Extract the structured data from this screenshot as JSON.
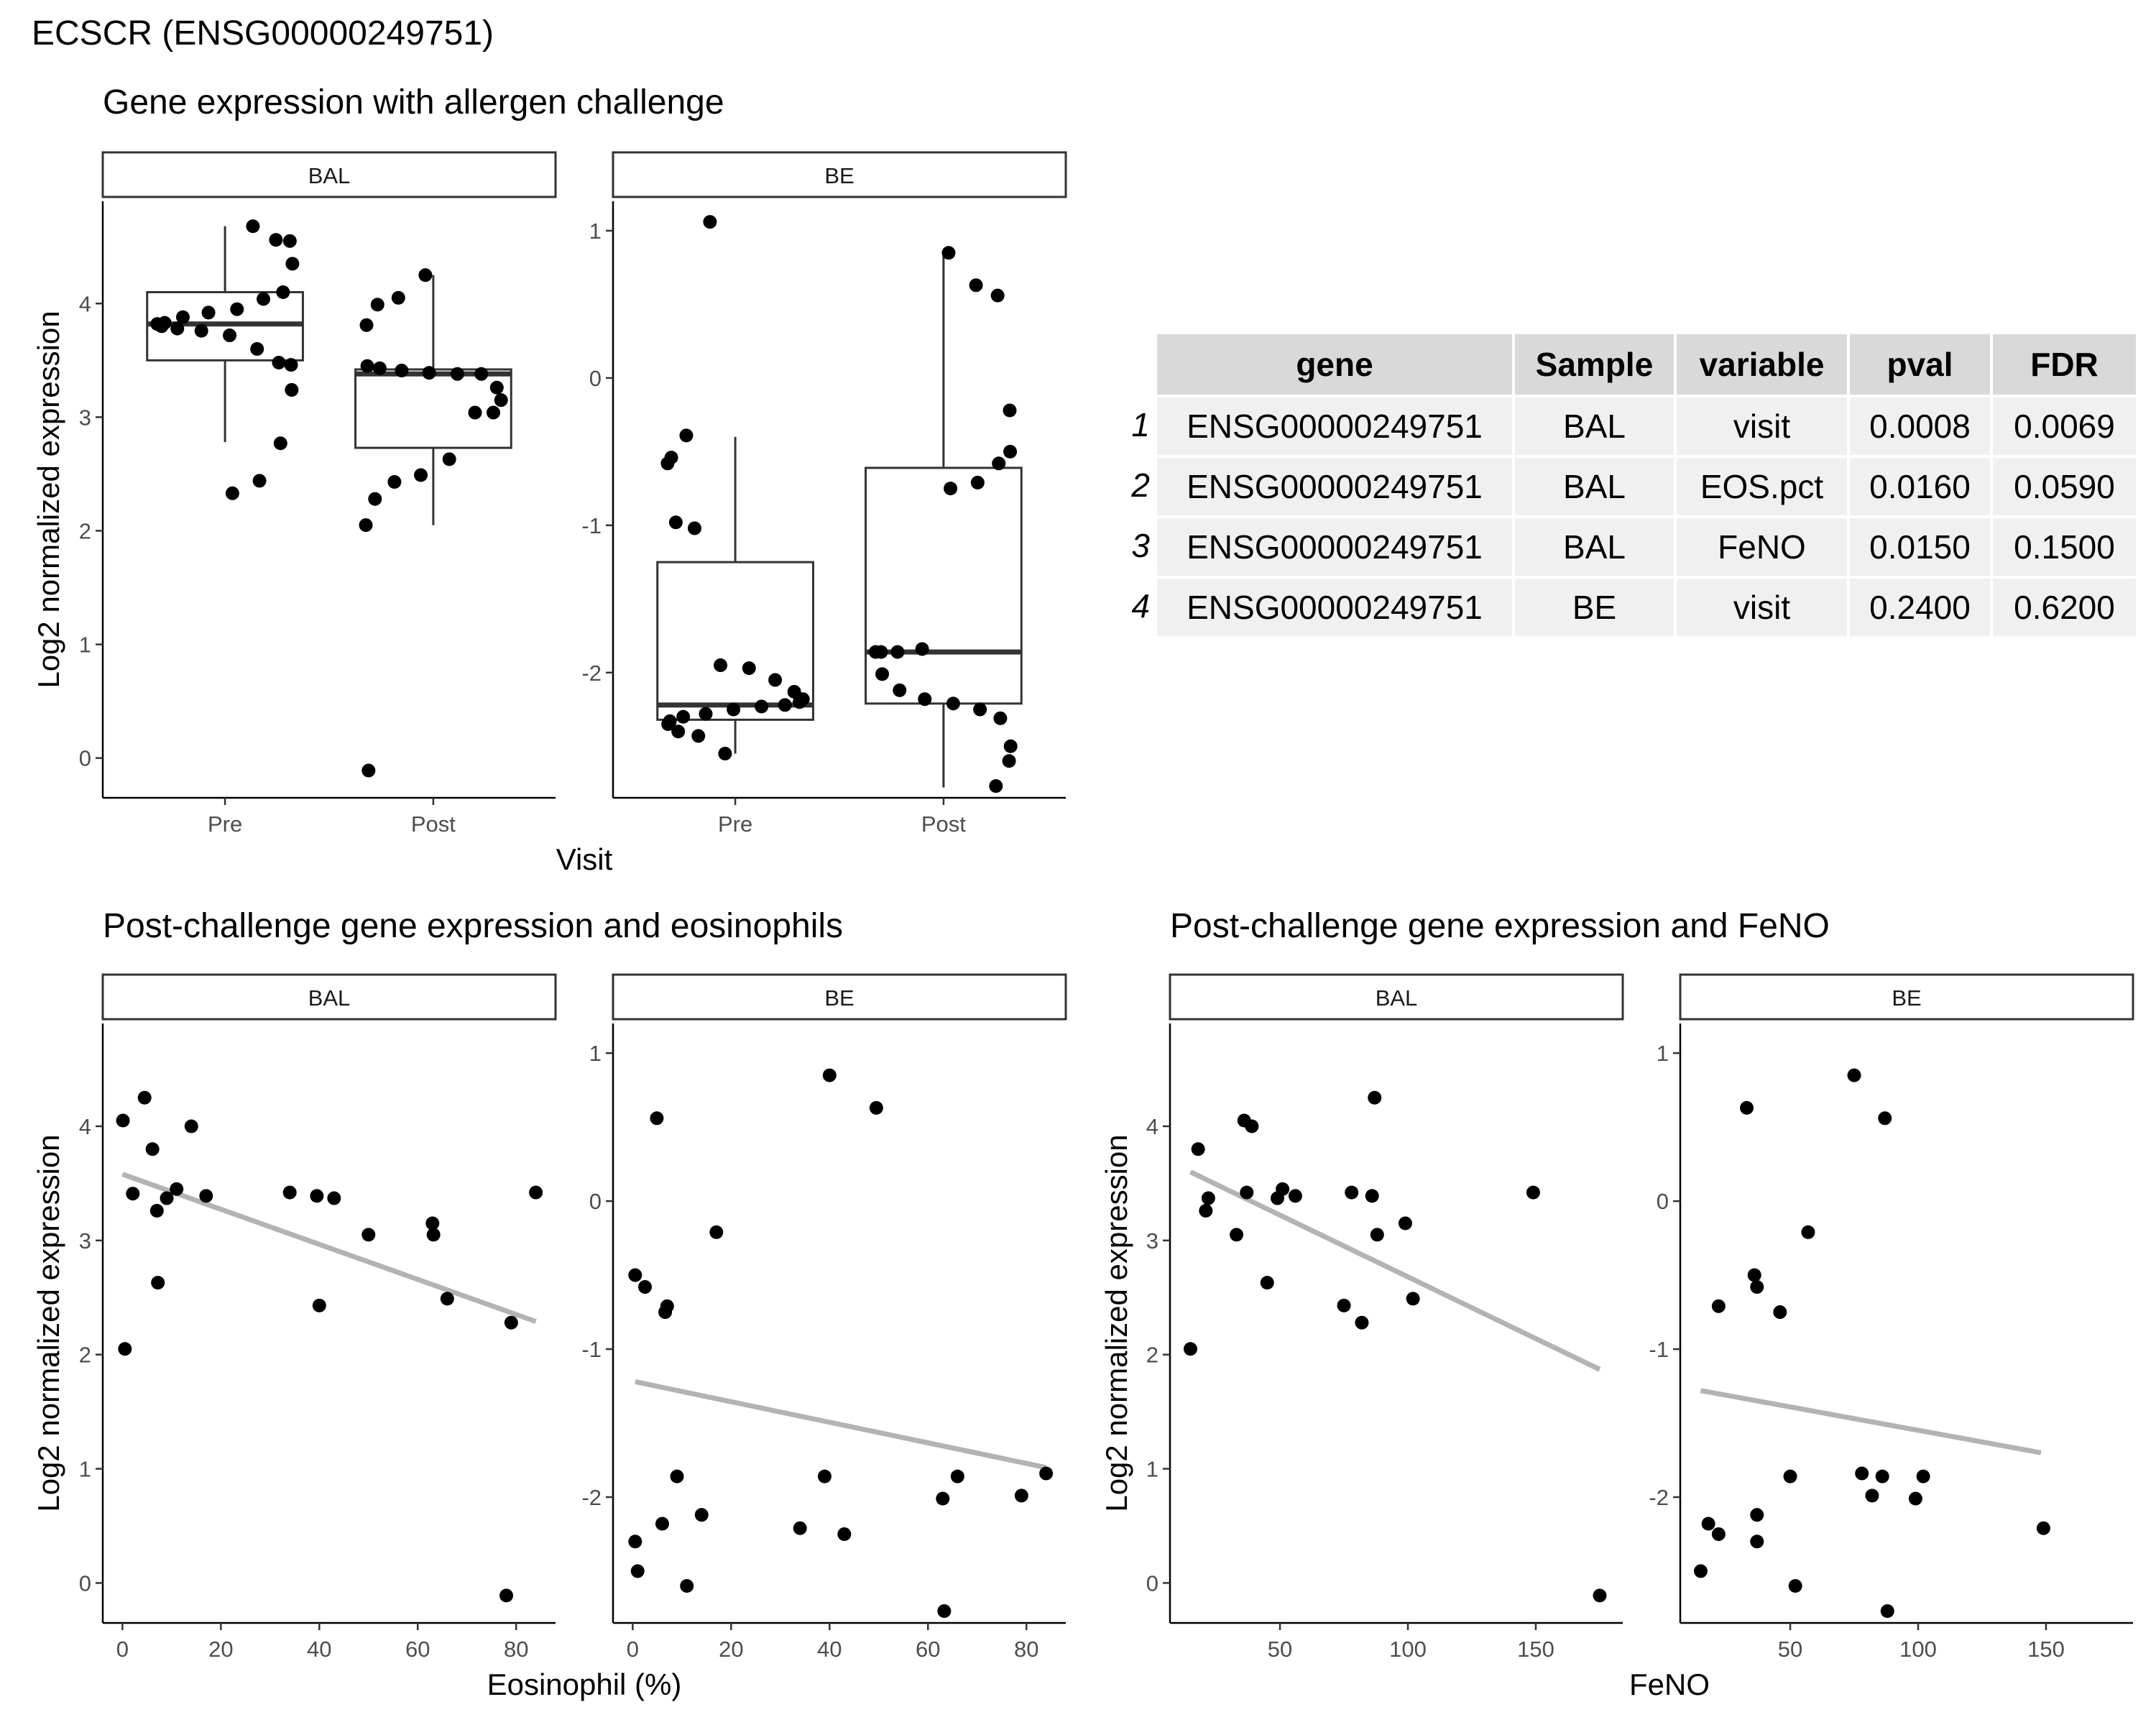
{
  "figure_title": "ECSCR (ENSG00000249751)",
  "chart_data": [
    {
      "id": "boxplot",
      "type": "box",
      "title": "Gene expression with allergen challenge",
      "xlabel": "Visit",
      "ylabel": "Log2 normalized expression",
      "categories": [
        "Pre",
        "Post"
      ],
      "panels": [
        {
          "name": "BAL",
          "ylim": [
            -0.35,
            4.9
          ],
          "yticks": [
            0,
            1,
            2,
            3,
            4
          ],
          "boxes": [
            {
              "category": "Pre",
              "whisker_low": 2.78,
              "q1": 3.5,
              "median": 3.82,
              "q3": 4.1,
              "whisker_high": 4.68
            },
            {
              "category": "Post",
              "whisker_low": 2.05,
              "q1": 2.73,
              "median": 3.38,
              "q3": 3.42,
              "whisker_high": 4.25
            }
          ],
          "points": [
            {
              "category": "Pre",
              "values": [
                4.68,
                4.56,
                4.55,
                4.35,
                4.1,
                4.04,
                3.95,
                3.92,
                3.88,
                3.83,
                3.82,
                3.8,
                3.78,
                3.76,
                3.72,
                3.6,
                3.48,
                3.46,
                3.24,
                2.77,
                2.44,
                2.33
              ]
            },
            {
              "category": "Post",
              "values": [
                4.25,
                4.05,
                3.99,
                3.81,
                3.45,
                3.43,
                3.41,
                3.39,
                3.38,
                3.38,
                3.26,
                3.15,
                3.04,
                3.04,
                2.63,
                2.49,
                2.43,
                2.28,
                2.05,
                -0.11
              ]
            }
          ]
        },
        {
          "name": "BE",
          "ylim": [
            -2.85,
            1.2
          ],
          "yticks": [
            -2,
            -1,
            0,
            1
          ],
          "boxes": [
            {
              "category": "Pre",
              "whisker_low": -2.55,
              "q1": -2.32,
              "median": -2.22,
              "q3": -1.25,
              "whisker_high": -0.4
            },
            {
              "category": "Post",
              "whisker_low": -2.78,
              "q1": -2.21,
              "median": -1.86,
              "q3": -0.61,
              "whisker_high": 0.85
            }
          ],
          "points": [
            {
              "category": "Pre",
              "values": [
                1.06,
                -0.39,
                -0.54,
                -0.58,
                -0.98,
                -1.02,
                -1.95,
                -1.97,
                -2.05,
                -2.13,
                -2.18,
                -2.2,
                -2.22,
                -2.23,
                -2.25,
                -2.28,
                -2.3,
                -2.33,
                -2.35,
                -2.4,
                -2.43,
                -2.55
              ]
            },
            {
              "category": "Post",
              "values": [
                0.85,
                0.63,
                0.56,
                -0.22,
                -0.5,
                -0.58,
                -0.71,
                -0.75,
                -1.84,
                -1.86,
                -1.86,
                -1.86,
                -2.01,
                -2.12,
                -2.18,
                -2.21,
                -2.25,
                -2.31,
                -2.5,
                -2.6,
                -2.77
              ]
            }
          ]
        }
      ]
    },
    {
      "id": "eos",
      "type": "scatter",
      "title": "Post-challenge gene expression and eosinophils",
      "xlabel": "Eosinophil (%)",
      "ylabel": "Log2 normalized expression",
      "xlim": [
        -4,
        88
      ],
      "xticks": [
        0,
        20,
        40,
        60,
        80
      ],
      "panels": [
        {
          "name": "BAL",
          "ylim": [
            -0.35,
            4.9
          ],
          "yticks": [
            0,
            1,
            2,
            3,
            4
          ],
          "fit": [
            [
              0,
              3.58
            ],
            [
              84,
              2.29
            ]
          ],
          "points": [
            [
              0.1,
              4.05
            ],
            [
              0.5,
              2.05
            ],
            [
              2.1,
              3.41
            ],
            [
              4.5,
              4.25
            ],
            [
              6.1,
              3.8
            ],
            [
              7,
              3.26
            ],
            [
              7.2,
              2.63
            ],
            [
              9,
              3.37
            ],
            [
              11,
              3.45
            ],
            [
              14,
              4
            ],
            [
              17,
              3.39
            ],
            [
              34,
              3.42
            ],
            [
              39.5,
              3.39
            ],
            [
              40,
              2.43
            ],
            [
              43,
              3.37
            ],
            [
              50,
              3.05
            ],
            [
              63,
              3.15
            ],
            [
              63.2,
              3.05
            ],
            [
              66,
              2.49
            ],
            [
              78,
              -0.11
            ],
            [
              79,
              2.28
            ],
            [
              84,
              3.42
            ]
          ]
        },
        {
          "name": "BE",
          "ylim": [
            -2.85,
            1.2
          ],
          "yticks": [
            -2,
            -1,
            0,
            1
          ],
          "fit": [
            [
              0.5,
              -1.22
            ],
            [
              84,
              -1.8
            ]
          ],
          "points": [
            [
              0.5,
              -0.5
            ],
            [
              0.5,
              -2.3
            ],
            [
              1,
              -2.5
            ],
            [
              2.5,
              -0.58
            ],
            [
              4.9,
              0.56
            ],
            [
              6,
              -2.18
            ],
            [
              6.6,
              -0.75
            ],
            [
              7,
              -0.71
            ],
            [
              9,
              -1.86
            ],
            [
              11,
              -2.6
            ],
            [
              14,
              -2.12
            ],
            [
              17,
              -0.21
            ],
            [
              34,
              -2.21
            ],
            [
              39,
              -1.86
            ],
            [
              40,
              0.85
            ],
            [
              43,
              -2.25
            ],
            [
              49.5,
              0.63
            ],
            [
              63,
              -2.01
            ],
            [
              63.3,
              -2.77
            ],
            [
              66,
              -1.86
            ],
            [
              79,
              -1.99
            ],
            [
              84,
              -1.84
            ]
          ]
        }
      ]
    },
    {
      "id": "feno",
      "type": "scatter",
      "title": "Post-challenge gene expression and FeNO",
      "xlabel": "FeNO",
      "ylabel": "Log2 normalized expression",
      "xlim": [
        7,
        184
      ],
      "xticks": [
        50,
        100,
        150
      ],
      "panels": [
        {
          "name": "BAL",
          "ylim": [
            -0.35,
            4.9
          ],
          "yticks": [
            0,
            1,
            2,
            3,
            4
          ],
          "fit": [
            [
              15,
              3.6
            ],
            [
              175,
              1.87
            ]
          ],
          "points": [
            [
              15,
              2.05
            ],
            [
              18,
              3.8
            ],
            [
              21,
              3.26
            ],
            [
              22,
              3.37
            ],
            [
              33,
              3.05
            ],
            [
              36,
              4.05
            ],
            [
              37,
              3.42
            ],
            [
              39,
              4
            ],
            [
              45,
              2.63
            ],
            [
              49,
              3.37
            ],
            [
              51,
              3.45
            ],
            [
              56,
              3.39
            ],
            [
              75,
              2.43
            ],
            [
              78,
              3.42
            ],
            [
              82,
              2.28
            ],
            [
              86,
              3.39
            ],
            [
              87,
              4.25
            ],
            [
              88,
              3.05
            ],
            [
              99,
              3.15
            ],
            [
              102,
              2.49
            ],
            [
              149,
              3.42
            ],
            [
              175,
              -0.11
            ]
          ]
        },
        {
          "name": "BE",
          "ylim": [
            -2.85,
            1.2
          ],
          "yticks": [
            -2,
            -1,
            0,
            1
          ],
          "fit": [
            [
              15,
              -1.28
            ],
            [
              148,
              -1.7
            ]
          ],
          "points": [
            [
              15,
              -2.5
            ],
            [
              18,
              -2.18
            ],
            [
              22,
              -0.71
            ],
            [
              22,
              -2.25
            ],
            [
              33,
              0.63
            ],
            [
              36,
              -0.5
            ],
            [
              37,
              -0.58
            ],
            [
              37,
              -2.12
            ],
            [
              37,
              -2.3
            ],
            [
              46,
              -0.75
            ],
            [
              50,
              -1.86
            ],
            [
              52,
              -2.6
            ],
            [
              57,
              -0.21
            ],
            [
              75,
              0.85
            ],
            [
              78,
              -1.84
            ],
            [
              82,
              -1.99
            ],
            [
              86,
              -1.86
            ],
            [
              87,
              0.56
            ],
            [
              88,
              -2.77
            ],
            [
              99,
              -2.01
            ],
            [
              102,
              -1.86
            ],
            [
              149,
              -2.21
            ]
          ]
        }
      ]
    }
  ],
  "table": {
    "columns": [
      "gene",
      "Sample",
      "variable",
      "pval",
      "FDR"
    ],
    "rows": [
      {
        "index": "1",
        "cells": [
          "ENSG00000249751",
          "BAL",
          "visit",
          "0.0008",
          "0.0069"
        ]
      },
      {
        "index": "2",
        "cells": [
          "ENSG00000249751",
          "BAL",
          "EOS.pct",
          "0.0160",
          "0.0590"
        ]
      },
      {
        "index": "3",
        "cells": [
          "ENSG00000249751",
          "BAL",
          "FeNO",
          "0.0150",
          "0.1500"
        ]
      },
      {
        "index": "4",
        "cells": [
          "ENSG00000249751",
          "BE",
          "visit",
          "0.2400",
          "0.6200"
        ]
      }
    ]
  },
  "colors": {
    "points": "#000000",
    "fit_line": "#b3b3b3",
    "strip_fill": "#ffffff",
    "table_header_fill": "#d9d9d9",
    "table_row_fill": "#f0f0f0"
  }
}
